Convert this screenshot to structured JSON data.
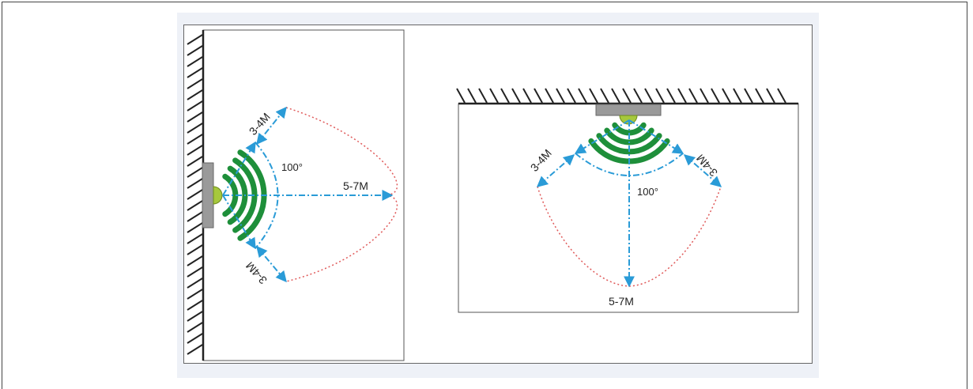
{
  "wall_mount": {
    "range_label": "5-7M",
    "side_top_label": "3-4M",
    "side_bottom_label": "3-4M",
    "angle_label": "100°"
  },
  "ceiling_mount": {
    "range_label": "5-7M",
    "side_left_label": "3-4M",
    "side_right_label": "3-4M",
    "angle_label": "100°"
  },
  "colors": {
    "wave": "#1e8f3a",
    "sensor_dot": "#a6c83c",
    "mount_plate": "#9a9a9a",
    "dimension_line": "#2a9bd7",
    "coverage_boundary": "#e05a5a",
    "wall_hatch": "#222222"
  }
}
